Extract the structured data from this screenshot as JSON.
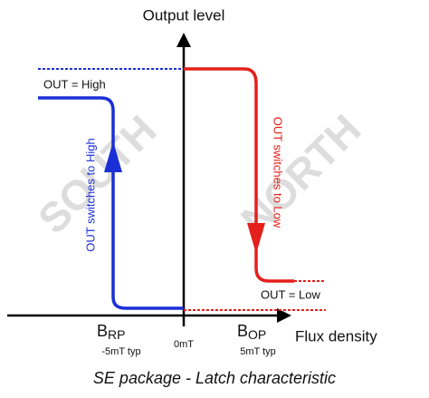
{
  "axes": {
    "y_label": "Output level",
    "x_label": "Flux density"
  },
  "regions": {
    "south": "SOUTH",
    "north": "NORTH"
  },
  "states": {
    "high": "OUT = High",
    "low": "OUT = Low"
  },
  "transitions": {
    "to_low": "OUT switches to Low",
    "to_high": "OUT switches to High"
  },
  "points": {
    "brp": {
      "symbol": "B",
      "subscript": "RP",
      "note": "-5mT typ"
    },
    "zero": "0mT",
    "bop": {
      "symbol": "B",
      "subscript": "OP",
      "note": "5mT typ"
    }
  },
  "caption": "SE package  - Latch characteristic"
}
